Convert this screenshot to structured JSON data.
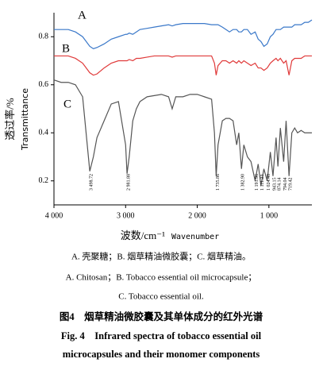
{
  "chart_data": {
    "type": "line",
    "xlabel": "波数/cm⁻¹",
    "xlabel_en": "Wavenumber",
    "ylabel": "透过率/%",
    "ylabel_en": "Transmittance",
    "xlim": [
      4000,
      400
    ],
    "ylim": [
      0.1,
      0.9
    ],
    "xticks": [
      {
        "value": 4000,
        "label": "4 000"
      },
      {
        "value": 3000,
        "label": "3 000"
      },
      {
        "value": 2000,
        "label": "2 000"
      },
      {
        "value": 1000,
        "label": "1 000"
      }
    ],
    "yticks": [
      0.2,
      0.4,
      0.6,
      0.8
    ],
    "x": [
      4000,
      3900,
      3800,
      3700,
      3600,
      3500,
      3450,
      3400,
      3300,
      3200,
      3100,
      3000,
      2980,
      2950,
      2900,
      2850,
      2800,
      2700,
      2600,
      2500,
      2400,
      2350,
      2300,
      2200,
      2100,
      2000,
      1900,
      1800,
      1760,
      1736,
      1710,
      1650,
      1600,
      1550,
      1500,
      1450,
      1420,
      1383,
      1350,
      1300,
      1250,
      1192,
      1150,
      1111,
      1070,
      1024,
      980,
      943,
      900,
      874,
      840,
      794,
      760,
      719,
      680,
      640,
      600,
      550,
      500,
      450,
      400
    ],
    "series": [
      {
        "name": "A",
        "color": "#3a78c9",
        "values": [
          0.83,
          0.83,
          0.83,
          0.82,
          0.8,
          0.76,
          0.75,
          0.755,
          0.77,
          0.79,
          0.8,
          0.81,
          0.81,
          0.815,
          0.81,
          0.82,
          0.83,
          0.835,
          0.84,
          0.845,
          0.85,
          0.845,
          0.85,
          0.855,
          0.855,
          0.855,
          0.855,
          0.85,
          0.85,
          0.85,
          0.85,
          0.84,
          0.83,
          0.82,
          0.83,
          0.83,
          0.82,
          0.82,
          0.83,
          0.83,
          0.81,
          0.82,
          0.79,
          0.78,
          0.76,
          0.77,
          0.8,
          0.81,
          0.83,
          0.83,
          0.83,
          0.84,
          0.84,
          0.84,
          0.84,
          0.85,
          0.85,
          0.85,
          0.86,
          0.86,
          0.87
        ]
      },
      {
        "name": "B",
        "color": "#e03a3a",
        "values": [
          0.72,
          0.72,
          0.72,
          0.71,
          0.69,
          0.65,
          0.64,
          0.645,
          0.67,
          0.69,
          0.7,
          0.7,
          0.7,
          0.705,
          0.7,
          0.71,
          0.71,
          0.715,
          0.72,
          0.72,
          0.72,
          0.715,
          0.72,
          0.72,
          0.72,
          0.72,
          0.72,
          0.72,
          0.69,
          0.64,
          0.68,
          0.7,
          0.7,
          0.69,
          0.7,
          0.69,
          0.7,
          0.69,
          0.7,
          0.69,
          0.68,
          0.69,
          0.67,
          0.67,
          0.66,
          0.67,
          0.69,
          0.7,
          0.71,
          0.7,
          0.71,
          0.69,
          0.7,
          0.64,
          0.7,
          0.71,
          0.71,
          0.71,
          0.72,
          0.72,
          0.72
        ]
      },
      {
        "name": "C",
        "color": "#555555",
        "values": [
          0.62,
          0.61,
          0.61,
          0.6,
          0.55,
          0.24,
          0.3,
          0.38,
          0.45,
          0.52,
          0.53,
          0.35,
          0.23,
          0.3,
          0.45,
          0.5,
          0.53,
          0.55,
          0.555,
          0.56,
          0.55,
          0.5,
          0.55,
          0.55,
          0.56,
          0.56,
          0.55,
          0.54,
          0.4,
          0.22,
          0.35,
          0.45,
          0.46,
          0.46,
          0.45,
          0.35,
          0.4,
          0.25,
          0.35,
          0.3,
          0.28,
          0.2,
          0.27,
          0.18,
          0.25,
          0.2,
          0.32,
          0.22,
          0.38,
          0.26,
          0.42,
          0.28,
          0.45,
          0.22,
          0.4,
          0.42,
          0.4,
          0.41,
          0.4,
          0.4,
          0.4
        ]
      }
    ],
    "annotations": [
      {
        "x": 3498.72,
        "label": "3 498.72"
      },
      {
        "x": 2981.88,
        "label": "2 981.88"
      },
      {
        "x": 1735.86,
        "label": "1 735.86"
      },
      {
        "x": 1382.9,
        "label": "1 382.90"
      },
      {
        "x": 1191.96,
        "label": "1 191.96"
      },
      {
        "x": 1111.23,
        "label": "1 111.23"
      },
      {
        "x": 1024.48,
        "label": "1 024.48"
      },
      {
        "x": 943.15,
        "label": "943.15"
      },
      {
        "x": 874.14,
        "label": "874.14"
      },
      {
        "x": 794.04,
        "label": "794.04"
      },
      {
        "x": 719.42,
        "label": "719.42"
      }
    ]
  },
  "caption": {
    "legend_zh": "A. 壳聚糖；B. 烟草精油微胶囊；C. 烟草精油。",
    "legend_en_1": "A. Chitosan；B. Tobacco essential oil microcapsule；",
    "legend_en_2": "C. Tobacco essential oil.",
    "title_zh": "图4　烟草精油微胶囊及其单体成分的红外光谱",
    "title_en_1": "Fig. 4　Infrared spectra of tobacco essential oil",
    "title_en_2": "microcapsules and their monomer components"
  }
}
